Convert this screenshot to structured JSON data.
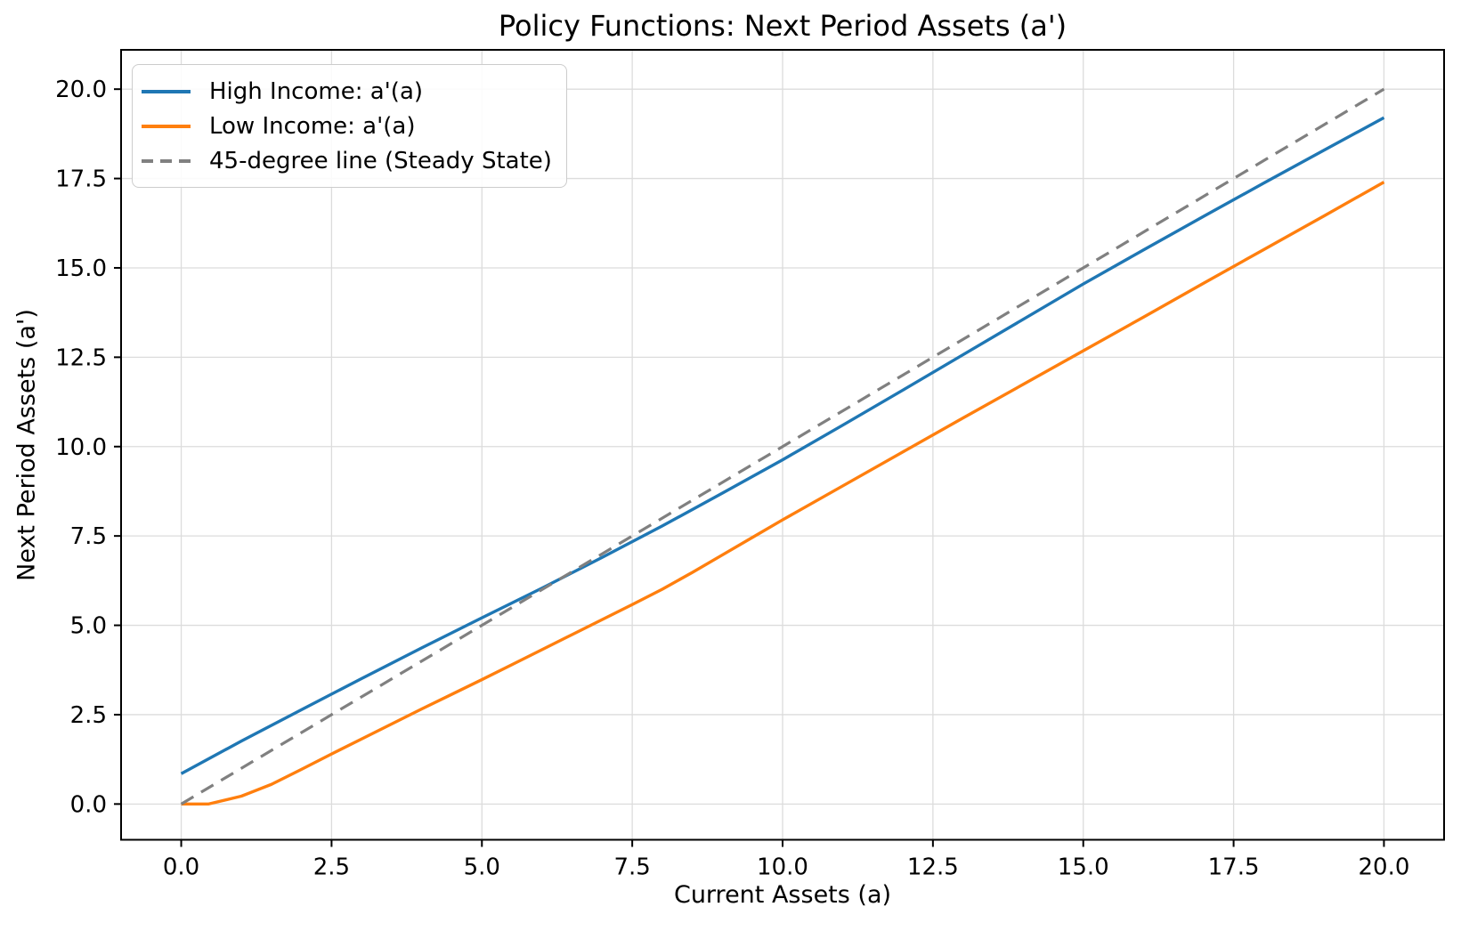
{
  "chart_data": {
    "type": "line",
    "title": "Policy Functions: Next Period Assets (a')",
    "xlabel": "Current Assets (a)",
    "ylabel": "Next Period Assets (a')",
    "xlim": [
      -1,
      21
    ],
    "ylim": [
      -1,
      21.1
    ],
    "xticks": [
      0.0,
      2.5,
      5.0,
      7.5,
      10.0,
      12.5,
      15.0,
      17.5,
      20.0
    ],
    "yticks": [
      0.0,
      2.5,
      5.0,
      7.5,
      10.0,
      12.5,
      15.0,
      17.5,
      20.0
    ],
    "tick_format_decimals": 1,
    "grid": true,
    "legend_position": "upper left",
    "series": [
      {
        "key": "high-income-policy",
        "name": "High Income: a'(a)",
        "color": "#1f77b4",
        "style": "solid",
        "x": [
          0,
          1,
          2,
          3,
          4,
          5,
          6,
          7,
          8,
          9,
          10,
          11,
          12,
          13,
          14,
          15,
          16,
          17,
          18,
          19,
          20
        ],
        "y": [
          0.85,
          1.76,
          2.64,
          3.51,
          4.37,
          5.21,
          6.04,
          6.9,
          7.78,
          8.7,
          9.63,
          10.6,
          11.58,
          12.57,
          13.56,
          14.55,
          15.5,
          16.44,
          17.37,
          18.29,
          19.2
        ]
      },
      {
        "key": "low-income-policy",
        "name": "Low Income: a'(a)",
        "color": "#ff7f0e",
        "style": "solid",
        "x": [
          0,
          0.45,
          1,
          1.5,
          2,
          2.5,
          3,
          3.5,
          4,
          4.5,
          5,
          5.5,
          6,
          6.5,
          7,
          7.5,
          8,
          8.5,
          9,
          9.5,
          10,
          11,
          12,
          13,
          14,
          15,
          16,
          17,
          18,
          19,
          20
        ],
        "y": [
          0,
          0,
          0.22,
          0.55,
          0.97,
          1.4,
          1.82,
          2.24,
          2.66,
          3.07,
          3.48,
          3.9,
          4.32,
          4.74,
          5.16,
          5.58,
          6.01,
          6.48,
          6.97,
          7.46,
          7.95,
          8.9,
          9.85,
          10.8,
          11.74,
          12.68,
          13.62,
          14.57,
          15.51,
          16.45,
          17.4
        ]
      },
      {
        "key": "45-degree-line",
        "name": "45-degree line (Steady State)",
        "color": "#808080",
        "style": "dashed",
        "x": [
          0,
          20
        ],
        "y": [
          0,
          20
        ]
      }
    ]
  }
}
